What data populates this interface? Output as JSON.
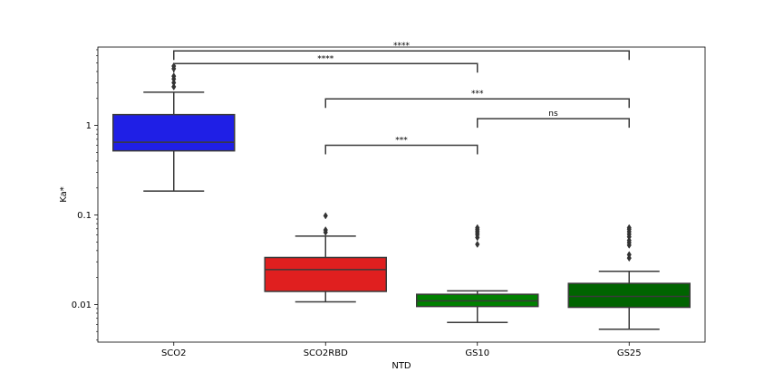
{
  "chart_data": {
    "type": "box",
    "title": "",
    "xlabel": "NTD",
    "ylabel": "Ka*",
    "yscale": "log",
    "ylim": [
      0.0038,
      7.5
    ],
    "yticks": [
      {
        "value": 0.01,
        "label": "0.01"
      },
      {
        "value": 0.1,
        "label": "0.1"
      },
      {
        "value": 1,
        "label": "1"
      }
    ],
    "grid": false,
    "legend": "none",
    "categories": [
      "SCO2",
      "SCO2RBD",
      "GS10",
      "GS25"
    ],
    "boxes": [
      {
        "category": "SCO2",
        "color": "#1f1fe6",
        "whisker_low": 0.185,
        "q1": 0.52,
        "median": 0.65,
        "q3": 1.32,
        "whisker_high": 2.35,
        "outliers": [
          2.7,
          3.0,
          3.3,
          3.55,
          4.3,
          4.6
        ]
      },
      {
        "category": "SCO2RBD",
        "color": "#e01f1f",
        "whisker_low": 0.0107,
        "q1": 0.014,
        "median": 0.0245,
        "q3": 0.0335,
        "whisker_high": 0.058,
        "outliers": [
          0.064,
          0.068,
          0.098
        ]
      },
      {
        "category": "GS10",
        "color": "#008000",
        "whisker_low": 0.0063,
        "q1": 0.0095,
        "median": 0.011,
        "q3": 0.013,
        "whisker_high": 0.0142,
        "outliers": [
          0.047,
          0.056,
          0.06,
          0.063,
          0.066,
          0.069,
          0.072
        ]
      },
      {
        "category": "GS25",
        "color": "#006400",
        "whisker_low": 0.0053,
        "q1": 0.0093,
        "median": 0.0123,
        "q3": 0.0172,
        "whisker_high": 0.0235,
        "outliers": [
          0.033,
          0.036,
          0.046,
          0.049,
          0.052,
          0.057,
          0.061,
          0.065,
          0.069,
          0.072
        ]
      }
    ],
    "annotations": [
      {
        "from": "SCO2",
        "to": "GS25",
        "y": 6.8,
        "label": "****"
      },
      {
        "from": "SCO2",
        "to": "GS10",
        "y": 4.9,
        "label": "****"
      },
      {
        "from": "SCO2RBD",
        "to": "GS25",
        "y": 1.98,
        "label": "***"
      },
      {
        "from": "GS10",
        "to": "GS25",
        "y": 1.19,
        "label": "ns"
      },
      {
        "from": "SCO2RBD",
        "to": "GS10",
        "y": 0.6,
        "label": "***"
      }
    ]
  }
}
